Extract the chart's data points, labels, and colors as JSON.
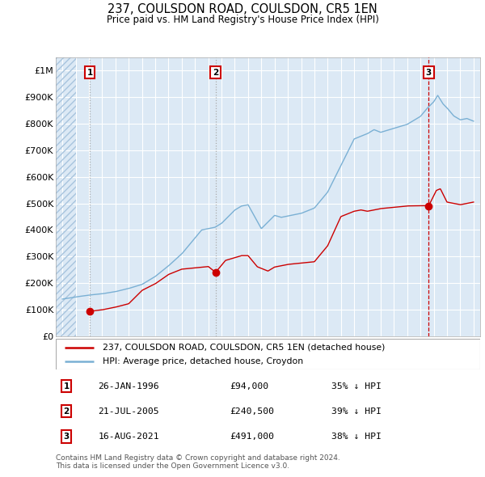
{
  "title": "237, COULSDON ROAD, COULSDON, CR5 1EN",
  "subtitle": "Price paid vs. HM Land Registry's House Price Index (HPI)",
  "background_color": "#ffffff",
  "plot_bg_color": "#dce9f5",
  "grid_color": "#ffffff",
  "red_line_color": "#cc0000",
  "blue_line_color": "#7ab0d4",
  "sale_marker_color": "#cc0000",
  "ylim": [
    0,
    1050000
  ],
  "yticks": [
    0,
    100000,
    200000,
    300000,
    400000,
    500000,
    600000,
    700000,
    800000,
    900000,
    1000000
  ],
  "ytick_labels": [
    "£0",
    "£100K",
    "£200K",
    "£300K",
    "£400K",
    "£500K",
    "£600K",
    "£700K",
    "£800K",
    "£900K",
    "£1M"
  ],
  "xlim_start": 1993.5,
  "xlim_end": 2025.5,
  "hatch_end": 1995.0,
  "sale_events": [
    {
      "year": 1996.07,
      "price": 94000,
      "label": "1"
    },
    {
      "year": 2005.55,
      "price": 240500,
      "label": "2"
    },
    {
      "year": 2021.62,
      "price": 491000,
      "label": "3"
    }
  ],
  "legend_entries": [
    {
      "color": "#cc0000",
      "label": "237, COULSDON ROAD, COULSDON, CR5 1EN (detached house)"
    },
    {
      "color": "#7ab0d4",
      "label": "HPI: Average price, detached house, Croydon"
    }
  ],
  "table_rows": [
    {
      "num": "1",
      "date": "26-JAN-1996",
      "price": "£94,000",
      "change": "35% ↓ HPI"
    },
    {
      "num": "2",
      "date": "21-JUL-2005",
      "price": "£240,500",
      "change": "39% ↓ HPI"
    },
    {
      "num": "3",
      "date": "16-AUG-2021",
      "price": "£491,000",
      "change": "38% ↓ HPI"
    }
  ],
  "footnote": "Contains HM Land Registry data © Crown copyright and database right 2024.\nThis data is licensed under the Open Government Licence v3.0."
}
